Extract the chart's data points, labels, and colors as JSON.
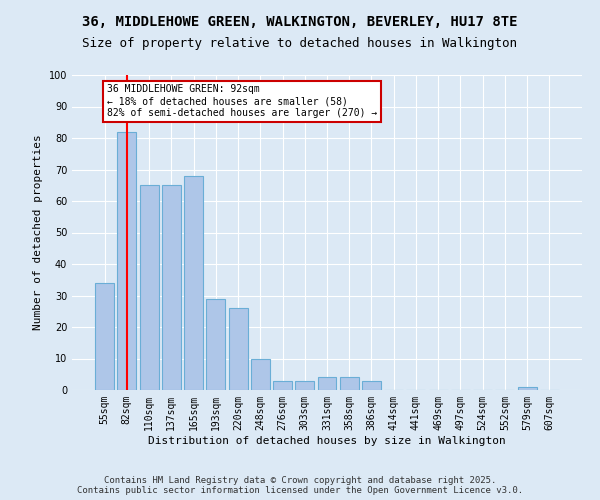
{
  "title": "36, MIDDLEHOWE GREEN, WALKINGTON, BEVERLEY, HU17 8TE",
  "subtitle": "Size of property relative to detached houses in Walkington",
  "xlabel": "Distribution of detached houses by size in Walkington",
  "ylabel": "Number of detached properties",
  "categories": [
    "55sqm",
    "82sqm",
    "110sqm",
    "137sqm",
    "165sqm",
    "193sqm",
    "220sqm",
    "248sqm",
    "276sqm",
    "303sqm",
    "331sqm",
    "358sqm",
    "386sqm",
    "414sqm",
    "441sqm",
    "469sqm",
    "497sqm",
    "524sqm",
    "552sqm",
    "579sqm",
    "607sqm"
  ],
  "values": [
    34,
    82,
    65,
    65,
    68,
    29,
    26,
    10,
    3,
    3,
    4,
    4,
    3,
    0,
    0,
    0,
    0,
    0,
    0,
    1,
    0
  ],
  "bar_color": "#aec6e8",
  "bar_edge_color": "#6aaed6",
  "red_line_index": 1,
  "ylim": [
    0,
    100
  ],
  "yticks": [
    0,
    10,
    20,
    30,
    40,
    50,
    60,
    70,
    80,
    90,
    100
  ],
  "annotation_text": "36 MIDDLEHOWE GREEN: 92sqm\n← 18% of detached houses are smaller (58)\n82% of semi-detached houses are larger (270) →",
  "annotation_box_color": "#ffffff",
  "annotation_box_edge_color": "#cc0000",
  "bg_color": "#dce9f5",
  "footer_text": "Contains HM Land Registry data © Crown copyright and database right 2025.\nContains public sector information licensed under the Open Government Licence v3.0.",
  "title_fontsize": 10,
  "subtitle_fontsize": 9,
  "label_fontsize": 8,
  "tick_fontsize": 7,
  "footer_fontsize": 6.5,
  "annotation_fontsize": 7
}
